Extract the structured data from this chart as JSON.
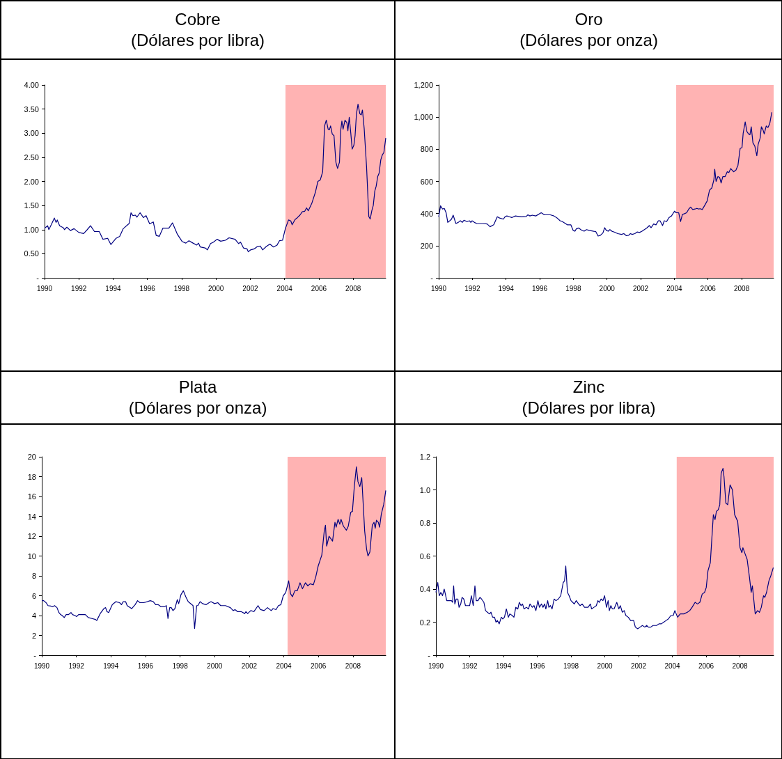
{
  "chart_data": [
    {
      "type": "line",
      "title": "Cobre",
      "subtitle": "(Dólares por libra)",
      "color": "#000080",
      "marker": "none",
      "x": [
        1990.0,
        1990.18,
        1990.25,
        1990.39,
        1990.57,
        1990.67,
        1990.74,
        1990.88,
        1991.09,
        1991.16,
        1991.3,
        1991.51,
        1991.72,
        1992.0,
        1992.28,
        1992.49,
        1992.68,
        1992.91,
        1993.19,
        1993.4,
        1993.68,
        1993.87,
        1994.17,
        1994.38,
        1994.59,
        1994.94,
        1995.04,
        1995.15,
        1995.29,
        1995.39,
        1995.57,
        1995.76,
        1995.92,
        1996.13,
        1996.34,
        1996.51,
        1996.69,
        1996.9,
        1997.25,
        1997.46,
        1997.75,
        1998.03,
        1998.24,
        1998.42,
        1998.66,
        1998.87,
        1998.98,
        1999.08,
        1999.36,
        1999.5,
        1999.68,
        1999.85,
        2000.06,
        2000.27,
        2000.55,
        2000.76,
        2001.11,
        2001.32,
        2001.43,
        2001.6,
        2001.81,
        2001.88,
        2002.02,
        2002.23,
        2002.37,
        2002.58,
        2002.72,
        2002.93,
        2003.14,
        2003.35,
        2003.56,
        2003.7,
        2003.88,
        2004.05,
        2004.23,
        2004.36,
        2004.44,
        2004.61,
        2004.75,
        2004.89,
        2005.03,
        2005.17,
        2005.28,
        2005.38,
        2005.59,
        2005.8,
        2005.94,
        2006.08,
        2006.22,
        2006.33,
        2006.43,
        2006.54,
        2006.61,
        2006.68,
        2006.78,
        2006.88,
        2006.99,
        2007.09,
        2007.2,
        2007.27,
        2007.34,
        2007.41,
        2007.52,
        2007.63,
        2007.69,
        2007.77,
        2007.86,
        2007.94,
        2008.04,
        2008.11,
        2008.19,
        2008.28,
        2008.39,
        2008.47,
        2008.54,
        2008.64,
        2008.78,
        2008.91,
        2008.99,
        2009.09,
        2009.17,
        2009.26,
        2009.34,
        2009.43,
        2009.51,
        2009.61,
        2009.7,
        2009.79,
        2009.9
      ],
      "values": [
        1.03,
        1.08,
        1.0,
        1.1,
        1.24,
        1.15,
        1.2,
        1.08,
        1.04,
        1.0,
        1.05,
        0.98,
        1.02,
        0.94,
        0.92,
        1.0,
        1.08,
        0.96,
        0.96,
        0.8,
        0.82,
        0.69,
        0.82,
        0.86,
        1.02,
        1.13,
        1.35,
        1.29,
        1.3,
        1.26,
        1.35,
        1.25,
        1.29,
        1.12,
        1.16,
        0.88,
        0.86,
        1.03,
        1.03,
        1.14,
        0.9,
        0.75,
        0.72,
        0.77,
        0.72,
        0.68,
        0.72,
        0.64,
        0.62,
        0.58,
        0.71,
        0.74,
        0.8,
        0.76,
        0.78,
        0.83,
        0.8,
        0.71,
        0.74,
        0.62,
        0.6,
        0.54,
        0.58,
        0.6,
        0.64,
        0.66,
        0.58,
        0.65,
        0.7,
        0.64,
        0.68,
        0.77,
        0.78,
        1.03,
        1.2,
        1.18,
        1.1,
        1.21,
        1.25,
        1.3,
        1.37,
        1.38,
        1.45,
        1.39,
        1.55,
        1.78,
        2.0,
        2.03,
        2.2,
        3.15,
        3.27,
        3.08,
        3.07,
        3.15,
        2.98,
        2.95,
        2.4,
        2.27,
        2.4,
        3.05,
        3.25,
        3.08,
        3.27,
        3.22,
        3.05,
        3.33,
        3.0,
        2.67,
        2.75,
        2.95,
        3.4,
        3.6,
        3.4,
        3.38,
        3.48,
        3.1,
        2.3,
        1.27,
        1.22,
        1.4,
        1.5,
        1.8,
        1.9,
        2.1,
        2.17,
        2.45,
        2.55,
        2.6,
        2.9
      ],
      "xlim": [
        1990,
        2009.9
      ],
      "xticks": [
        1990,
        1992,
        1994,
        1996,
        1998,
        2000,
        2002,
        2004,
        2006,
        2008
      ],
      "ylim": [
        0,
        4
      ],
      "yticks": [
        {
          "value": 0,
          "label": "-"
        },
        {
          "value": 0.5,
          "label": "0.50"
        },
        {
          "value": 1,
          "label": "1.00"
        },
        {
          "value": 1.5,
          "label": "1.50"
        },
        {
          "value": 2,
          "label": "2.00"
        },
        {
          "value": 2.5,
          "label": "2.50"
        },
        {
          "value": 3,
          "label": "3.00"
        },
        {
          "value": 3.5,
          "label": "3.50"
        },
        {
          "value": 4,
          "label": "4.00"
        }
      ],
      "bands": [
        {
          "axis": "x",
          "from": 2004.05,
          "to": 2009.9,
          "color": "#ffb3b3"
        }
      ]
    },
    {
      "type": "line",
      "title": "Oro",
      "subtitle": "(Dólares por onza)",
      "color": "#000080",
      "marker": "none",
      "x": [
        1990.0,
        1990.11,
        1990.23,
        1990.33,
        1990.44,
        1990.54,
        1990.66,
        1990.76,
        1990.86,
        1991.02,
        1991.16,
        1991.29,
        1991.4,
        1991.5,
        1991.69,
        1991.83,
        1991.91,
        1991.98,
        1992.12,
        1992.26,
        1992.62,
        1992.88,
        1993.05,
        1993.27,
        1993.48,
        1993.62,
        1993.84,
        1993.94,
        1994.05,
        1994.2,
        1994.34,
        1994.56,
        1994.91,
        1995.2,
        1995.3,
        1995.42,
        1995.56,
        1995.77,
        1996.09,
        1996.28,
        1996.63,
        1996.85,
        1997.06,
        1997.21,
        1997.35,
        1997.64,
        1997.85,
        1997.99,
        1998.09,
        1998.18,
        1998.32,
        1998.47,
        1998.64,
        1998.78,
        1998.95,
        1999.21,
        1999.33,
        1999.47,
        1999.61,
        1999.76,
        1999.86,
        1999.96,
        2000.07,
        2000.17,
        2000.29,
        2000.43,
        2000.64,
        2000.86,
        2001.0,
        2001.15,
        2001.29,
        2001.39,
        2001.5,
        2001.65,
        2001.79,
        2001.93,
        2002.08,
        2002.22,
        2002.36,
        2002.51,
        2002.62,
        2002.77,
        2002.91,
        2003.05,
        2003.15,
        2003.3,
        2003.4,
        2003.54,
        2003.68,
        2003.83,
        2004.01,
        2004.11,
        2004.26,
        2004.37,
        2004.48,
        2004.58,
        2004.73,
        2004.87,
        2004.97,
        2005.09,
        2005.23,
        2005.34,
        2005.44,
        2005.54,
        2005.66,
        2005.8,
        2005.95,
        2006.09,
        2006.23,
        2006.35,
        2006.4,
        2006.48,
        2006.59,
        2006.69,
        2006.78,
        2006.88,
        2007.02,
        2007.14,
        2007.24,
        2007.35,
        2007.52,
        2007.66,
        2007.78,
        2007.91,
        2008.02,
        2008.09,
        2008.21,
        2008.31,
        2008.41,
        2008.49,
        2008.57,
        2008.67,
        2008.78,
        2008.9,
        2008.98,
        2009.1,
        2009.17,
        2009.27,
        2009.34,
        2009.46,
        2009.56,
        2009.67,
        2009.79
      ],
      "values": [
        380,
        448,
        428,
        432,
        405,
        345,
        355,
        365,
        390,
        338,
        345,
        355,
        345,
        358,
        350,
        355,
        345,
        355,
        345,
        338,
        338,
        335,
        318,
        330,
        380,
        372,
        365,
        380,
        385,
        380,
        375,
        385,
        380,
        382,
        392,
        385,
        390,
        385,
        405,
        392,
        392,
        385,
        370,
        355,
        350,
        330,
        330,
        295,
        290,
        305,
        310,
        298,
        290,
        300,
        295,
        290,
        288,
        260,
        265,
        280,
        312,
        295,
        290,
        300,
        290,
        285,
        275,
        270,
        275,
        262,
        265,
        275,
        270,
        275,
        285,
        282,
        290,
        300,
        310,
        325,
        312,
        335,
        330,
        355,
        355,
        325,
        355,
        350,
        375,
        385,
        415,
        405,
        405,
        350,
        395,
        398,
        405,
        430,
        440,
        425,
        428,
        432,
        428,
        430,
        425,
        450,
        478,
        545,
        560,
        610,
        675,
        600,
        630,
        625,
        590,
        630,
        630,
        660,
        655,
        680,
        660,
        670,
        700,
        805,
        810,
        900,
        970,
        910,
        895,
        890,
        940,
        840,
        820,
        760,
        830,
        870,
        940,
        920,
        895,
        945,
        935,
        960,
        1030
      ],
      "xlim": [
        1990,
        2009.9
      ],
      "xticks": [
        1990,
        1992,
        1994,
        1996,
        1998,
        2000,
        2002,
        2004,
        2006,
        2008
      ],
      "ylim": [
        0,
        1200
      ],
      "yticks": [
        {
          "value": 0,
          "label": "-"
        },
        200,
        400,
        600,
        800,
        {
          "value": 1000,
          "label": "1,000"
        },
        {
          "value": 1200,
          "label": "1,200"
        }
      ],
      "bands": [
        {
          "axis": "x",
          "from": 2004.11,
          "to": 2009.9,
          "color": "#ffb3b3"
        }
      ]
    },
    {
      "type": "line",
      "title": "Plata",
      "subtitle": "(Dólares por onza)",
      "color": "#000080",
      "marker": "none",
      "x": [
        1990.0,
        1990.11,
        1990.25,
        1990.36,
        1990.53,
        1990.63,
        1990.74,
        1990.88,
        1990.99,
        1991.09,
        1991.18,
        1991.3,
        1991.41,
        1991.55,
        1991.69,
        1991.78,
        1991.92,
        1992.02,
        1992.13,
        1992.27,
        1992.52,
        1992.69,
        1992.9,
        1993.11,
        1993.18,
        1993.38,
        1993.59,
        1993.69,
        1993.77,
        1993.87,
        1994.08,
        1994.29,
        1994.5,
        1994.61,
        1994.71,
        1994.85,
        1994.94,
        1995.2,
        1995.4,
        1995.54,
        1995.68,
        1995.89,
        1996.1,
        1996.28,
        1996.45,
        1996.59,
        1996.73,
        1996.89,
        1997.08,
        1997.21,
        1997.3,
        1997.4,
        1997.49,
        1997.59,
        1997.7,
        1997.84,
        1997.92,
        1998.05,
        1998.19,
        1998.33,
        1998.47,
        1998.68,
        1998.75,
        1998.84,
        1998.96,
        1999.03,
        1999.16,
        1999.3,
        1999.51,
        1999.68,
        1999.79,
        2000.0,
        2000.18,
        2000.35,
        2000.63,
        2000.91,
        2001.07,
        2001.18,
        2001.32,
        2001.53,
        2001.74,
        2001.81,
        2001.91,
        2002.09,
        2002.27,
        2002.51,
        2002.65,
        2002.86,
        2003.06,
        2003.27,
        2003.38,
        2003.55,
        2003.69,
        2003.83,
        2003.97,
        2004.11,
        2004.28,
        2004.39,
        2004.5,
        2004.64,
        2004.78,
        2004.94,
        2005.08,
        2005.25,
        2005.39,
        2005.53,
        2005.71,
        2005.85,
        2005.99,
        2006.2,
        2006.34,
        2006.41,
        2006.48,
        2006.62,
        2006.82,
        2006.96,
        2007.03,
        2007.14,
        2007.24,
        2007.31,
        2007.45,
        2007.62,
        2007.73,
        2007.87,
        2007.97,
        2008.08,
        2008.2,
        2008.29,
        2008.4,
        2008.51,
        2008.57,
        2008.68,
        2008.79,
        2008.87,
        2008.98,
        2009.12,
        2009.22,
        2009.29,
        2009.36,
        2009.47,
        2009.54,
        2009.64,
        2009.78,
        2009.9
      ],
      "values": [
        5.5,
        5.5,
        5.3,
        5.0,
        4.95,
        4.9,
        5.0,
        4.8,
        4.3,
        4.1,
        4.0,
        3.8,
        4.1,
        4.1,
        4.3,
        4.1,
        4.0,
        3.9,
        4.1,
        4.1,
        4.1,
        3.8,
        3.7,
        3.6,
        3.5,
        4.2,
        4.7,
        4.8,
        4.4,
        4.3,
        5.1,
        5.4,
        5.3,
        5.1,
        5.4,
        5.4,
        5.0,
        4.7,
        5.1,
        5.5,
        5.3,
        5.3,
        5.4,
        5.5,
        5.4,
        5.1,
        5.1,
        4.9,
        4.9,
        5.0,
        3.7,
        4.8,
        4.8,
        4.5,
        4.7,
        5.6,
        5.2,
        6.1,
        6.5,
        5.9,
        5.4,
        5.1,
        5.0,
        2.7,
        5.0,
        5.0,
        5.4,
        5.2,
        5.1,
        5.3,
        5.4,
        5.2,
        5.3,
        5.0,
        5.0,
        4.8,
        4.5,
        4.6,
        4.4,
        4.4,
        4.2,
        4.4,
        4.2,
        4.5,
        4.4,
        5.0,
        4.6,
        4.5,
        4.8,
        4.5,
        4.7,
        4.6,
        5.0,
        5.1,
        6.0,
        6.3,
        7.5,
        6.2,
        5.9,
        6.5,
        6.5,
        7.3,
        6.7,
        7.3,
        7.0,
        7.2,
        7.1,
        7.9,
        9.0,
        10.1,
        12.5,
        13.1,
        11.0,
        12.0,
        11.5,
        13.4,
        12.9,
        13.7,
        13.2,
        13.7,
        13.0,
        12.6,
        13.0,
        14.4,
        14.5,
        17.0,
        19.0,
        17.5,
        17.0,
        17.9,
        16.0,
        12.5,
        10.7,
        10.0,
        10.4,
        13.1,
        13.4,
        12.8,
        13.6,
        13.4,
        12.9,
        14.2,
        15.2,
        16.6
      ],
      "xlim": [
        1990,
        2009.9
      ],
      "xticks": [
        1990,
        1992,
        1994,
        1996,
        1998,
        2000,
        2002,
        2004,
        2006,
        2008
      ],
      "ylim": [
        0,
        20
      ],
      "yticks": [
        {
          "value": 0,
          "label": "-"
        },
        2,
        4,
        6,
        8,
        10,
        12,
        14,
        16,
        18,
        20
      ],
      "bands": [
        {
          "axis": "x",
          "from": 2004.22,
          "to": 2009.9,
          "color": "#ffb3b3"
        }
      ]
    },
    {
      "type": "line",
      "title": "Zinc",
      "subtitle": "(Dólares por libra)",
      "color": "#000080",
      "marker": "none",
      "x": [
        1990.0,
        1990.11,
        1990.2,
        1990.29,
        1990.39,
        1990.49,
        1990.56,
        1990.64,
        1990.81,
        1990.92,
        1990.99,
        1991.05,
        1991.12,
        1991.2,
        1991.3,
        1991.37,
        1991.47,
        1991.55,
        1991.65,
        1991.75,
        1991.89,
        1992.0,
        1992.1,
        1992.21,
        1992.31,
        1992.39,
        1992.49,
        1992.61,
        1992.7,
        1992.84,
        1992.94,
        1993.05,
        1993.17,
        1993.26,
        1993.36,
        1993.47,
        1993.56,
        1993.64,
        1993.75,
        1993.87,
        1993.96,
        1994.06,
        1994.17,
        1994.29,
        1994.38,
        1994.52,
        1994.62,
        1994.73,
        1994.85,
        1994.94,
        1995.04,
        1995.13,
        1995.22,
        1995.36,
        1995.48,
        1995.57,
        1995.71,
        1995.81,
        1995.92,
        1996.04,
        1996.13,
        1996.25,
        1996.34,
        1996.44,
        1996.51,
        1996.62,
        1996.69,
        1996.78,
        1996.88,
        1997.0,
        1997.11,
        1997.25,
        1997.39,
        1997.54,
        1997.62,
        1997.69,
        1997.79,
        1997.89,
        1998.0,
        1998.1,
        1998.19,
        1998.31,
        1998.45,
        1998.54,
        1998.66,
        1998.8,
        1999.01,
        1999.15,
        1999.22,
        1999.36,
        1999.5,
        1999.59,
        1999.68,
        1999.78,
        1999.89,
        1999.99,
        2000.1,
        2000.2,
        2000.27,
        2000.36,
        2000.45,
        2000.55,
        2000.71,
        2000.83,
        2000.92,
        2001.04,
        2001.15,
        2001.25,
        2001.39,
        2001.53,
        2001.71,
        2001.81,
        2001.95,
        2002.09,
        2002.23,
        2002.37,
        2002.48,
        2002.58,
        2002.72,
        2002.86,
        2003.07,
        2003.21,
        2003.35,
        2003.49,
        2003.63,
        2003.77,
        2003.91,
        2004.05,
        2004.15,
        2004.31,
        2004.47,
        2004.68,
        2004.89,
        2005.03,
        2005.17,
        2005.35,
        2005.49,
        2005.63,
        2005.77,
        2005.91,
        2006.01,
        2006.11,
        2006.25,
        2006.43,
        2006.53,
        2006.61,
        2006.72,
        2006.81,
        2006.89,
        2007.0,
        2007.06,
        2007.17,
        2007.28,
        2007.42,
        2007.56,
        2007.69,
        2007.87,
        2008.01,
        2008.12,
        2008.18,
        2008.32,
        2008.43,
        2008.57,
        2008.67,
        2008.74,
        2008.91,
        2009.05,
        2009.16,
        2009.27,
        2009.4,
        2009.48,
        2009.58,
        2009.72,
        2009.83,
        2009.98
      ],
      "values": [
        0.38,
        0.44,
        0.36,
        0.38,
        0.36,
        0.4,
        0.37,
        0.33,
        0.33,
        0.33,
        0.32,
        0.42,
        0.31,
        0.34,
        0.34,
        0.29,
        0.31,
        0.35,
        0.34,
        0.3,
        0.3,
        0.3,
        0.36,
        0.3,
        0.42,
        0.33,
        0.33,
        0.35,
        0.34,
        0.32,
        0.27,
        0.26,
        0.25,
        0.26,
        0.23,
        0.23,
        0.2,
        0.21,
        0.19,
        0.23,
        0.22,
        0.23,
        0.28,
        0.23,
        0.25,
        0.24,
        0.23,
        0.29,
        0.28,
        0.32,
        0.3,
        0.31,
        0.28,
        0.29,
        0.28,
        0.31,
        0.29,
        0.3,
        0.27,
        0.33,
        0.29,
        0.31,
        0.29,
        0.31,
        0.28,
        0.33,
        0.29,
        0.3,
        0.28,
        0.34,
        0.33,
        0.34,
        0.36,
        0.44,
        0.45,
        0.54,
        0.38,
        0.36,
        0.33,
        0.32,
        0.31,
        0.33,
        0.31,
        0.3,
        0.31,
        0.29,
        0.29,
        0.31,
        0.28,
        0.29,
        0.3,
        0.33,
        0.32,
        0.34,
        0.33,
        0.36,
        0.29,
        0.33,
        0.27,
        0.3,
        0.28,
        0.28,
        0.32,
        0.28,
        0.3,
        0.26,
        0.27,
        0.24,
        0.23,
        0.21,
        0.21,
        0.17,
        0.16,
        0.17,
        0.18,
        0.17,
        0.18,
        0.17,
        0.17,
        0.18,
        0.18,
        0.19,
        0.19,
        0.2,
        0.21,
        0.22,
        0.24,
        0.24,
        0.27,
        0.23,
        0.25,
        0.25,
        0.26,
        0.27,
        0.29,
        0.32,
        0.31,
        0.32,
        0.37,
        0.38,
        0.41,
        0.51,
        0.56,
        0.85,
        0.82,
        0.87,
        0.88,
        0.91,
        1.1,
        1.13,
        1.08,
        0.92,
        0.91,
        1.03,
        1.0,
        0.85,
        0.81,
        0.65,
        0.62,
        0.65,
        0.61,
        0.58,
        0.47,
        0.38,
        0.42,
        0.25,
        0.27,
        0.26,
        0.29,
        0.36,
        0.35,
        0.38,
        0.45,
        0.48,
        0.53
      ],
      "xlim": [
        1990,
        2010
      ],
      "xticks": [
        1990,
        1992,
        1994,
        1996,
        1998,
        2000,
        2002,
        2004,
        2006,
        2008
      ],
      "ylim": [
        0,
        1.2
      ],
      "yticks": [
        {
          "value": 0,
          "label": "-"
        },
        0.2,
        0.4,
        0.6,
        0.8,
        {
          "value": 1,
          "label": "1.0"
        },
        1.2
      ],
      "bands": [
        {
          "axis": "x",
          "from": 2004.26,
          "to": 2010,
          "color": "#ffb3b3"
        }
      ]
    }
  ]
}
